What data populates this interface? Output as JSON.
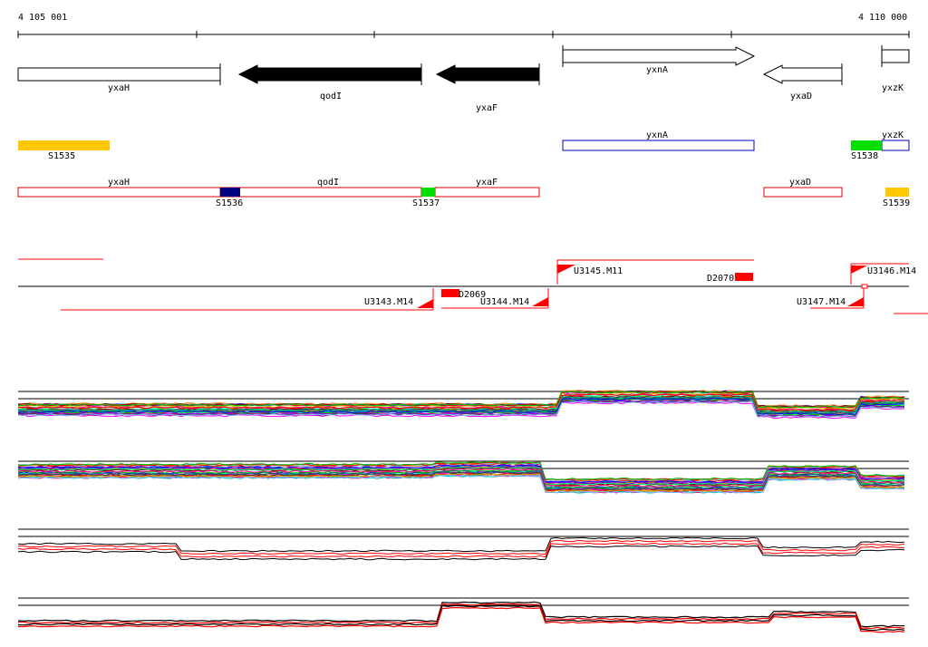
{
  "ruler": {
    "start_label": "4 105 001",
    "end_label": "4 110 000"
  },
  "genes_top": [
    {
      "name": "yxaH",
      "strand": "none",
      "fill": "white"
    },
    {
      "name": "qodI",
      "strand": "-",
      "fill": "black"
    },
    {
      "name": "yxaF",
      "strand": "-",
      "fill": "black"
    },
    {
      "name": "yxnA",
      "strand": "+",
      "fill": "white"
    },
    {
      "name": "yxaD",
      "strand": "-",
      "fill": "white"
    },
    {
      "name": "yxzK",
      "strand": "none",
      "fill": "white"
    }
  ],
  "sites": [
    {
      "label": "S1535",
      "color": "#ffc800"
    },
    {
      "label": "S1536",
      "color": "#000080"
    },
    {
      "label": "S1537",
      "color": "#00e000"
    },
    {
      "label": "S1538",
      "color": "#00e000"
    },
    {
      "label": "S1539",
      "color": "#ffc800"
    }
  ],
  "blue_features": [
    {
      "label": "yxnA",
      "color": "#0000c0"
    },
    {
      "label": "yxzK",
      "color": "#0000c0"
    }
  ],
  "red_features": [
    {
      "label": "yxaH",
      "color": "#e00000"
    },
    {
      "label": "qodI",
      "color": "#e00000"
    },
    {
      "label": "yxaF",
      "color": "#e00000"
    },
    {
      "label": "yxaD",
      "color": "#e00000"
    }
  ],
  "transcripts_upper": [
    {
      "label": "U3145.M11"
    },
    {
      "label": "U3146.M14"
    },
    {
      "label": "D2070"
    }
  ],
  "transcripts_lower": [
    {
      "label": "U3143.M14"
    },
    {
      "label": "D2069"
    },
    {
      "label": "U3144.M14"
    },
    {
      "label": "U3147.M14"
    }
  ],
  "colors": {
    "red": "#ff0000",
    "black": "#000000",
    "gold": "#ffc800",
    "green": "#00e000",
    "navy": "#000080",
    "blue": "#0000c0"
  }
}
